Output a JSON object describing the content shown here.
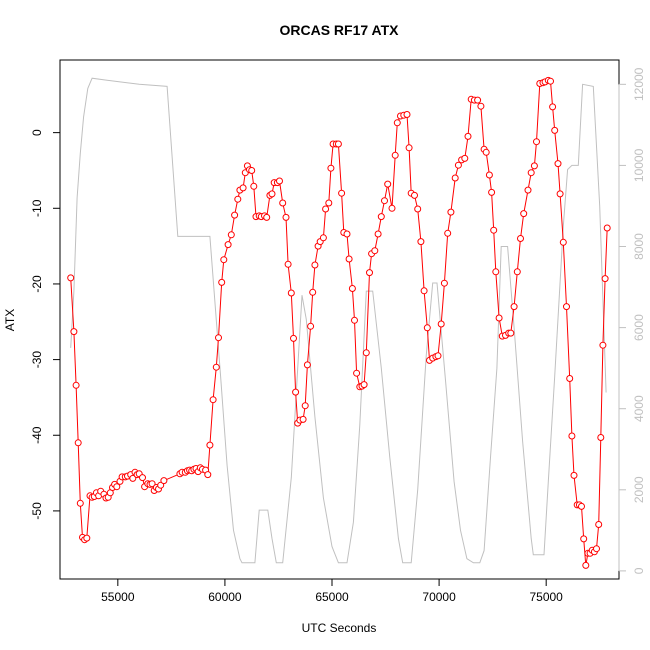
{
  "chart_data": {
    "type": "line",
    "title": "ORCAS RF17 ATX",
    "xlabel": "UTC Seconds",
    "ylabel": "ATX",
    "xlim": [
      52300,
      78400
    ],
    "ylim": [
      -59.0,
      9.6
    ],
    "y2lim": [
      -200,
      12600
    ],
    "x_ticks": [
      55000,
      60000,
      65000,
      70000,
      75000
    ],
    "y_ticks": [
      0,
      -10,
      -20,
      -30,
      -40,
      -50
    ],
    "y2_ticks": [
      0,
      2000,
      4000,
      6000,
      8000,
      10000,
      12000
    ],
    "grid": false,
    "colors": {
      "series": "#ff0000",
      "secondary": "#c0c0c0",
      "axes": "#000000"
    },
    "series": [
      {
        "y_axis": "left",
        "style": "line-with-points",
        "color": "#ff0000",
        "points": [
          [
            52800,
            -19.2
          ],
          [
            52950,
            -26.3
          ],
          [
            53050,
            -33.4
          ],
          [
            53150,
            -41.0
          ],
          [
            53250,
            -49.0
          ],
          [
            53350,
            -53.5
          ],
          [
            53450,
            -53.8
          ],
          [
            53550,
            -53.6
          ],
          [
            53700,
            -48.0
          ],
          [
            53800,
            -48.2
          ],
          [
            53900,
            -48.1
          ],
          [
            54000,
            -47.6
          ],
          [
            54100,
            -48.0
          ],
          [
            54200,
            -47.4
          ],
          [
            54350,
            -47.8
          ],
          [
            54450,
            -48.3
          ],
          [
            54550,
            -48.2
          ],
          [
            54650,
            -47.6
          ],
          [
            54750,
            -46.9
          ],
          [
            54850,
            -46.5
          ],
          [
            54950,
            -46.8
          ],
          [
            55100,
            -46.1
          ],
          [
            55200,
            -45.5
          ],
          [
            55350,
            -45.5
          ],
          [
            55450,
            -45.4
          ],
          [
            55600,
            -45.2
          ],
          [
            55700,
            -45.7
          ],
          [
            55800,
            -44.9
          ],
          [
            55900,
            -45.2
          ],
          [
            56000,
            -45.1
          ],
          [
            56150,
            -45.6
          ],
          [
            56250,
            -46.8
          ],
          [
            56400,
            -46.4
          ],
          [
            56500,
            -46.5
          ],
          [
            56600,
            -46.4
          ],
          [
            56700,
            -47.3
          ],
          [
            56800,
            -46.9
          ],
          [
            56900,
            -47.1
          ],
          [
            57000,
            -46.6
          ],
          [
            57150,
            -46.0
          ],
          [
            57900,
            -45.1
          ],
          [
            58000,
            -44.9
          ],
          [
            58150,
            -44.9
          ],
          [
            58250,
            -44.7
          ],
          [
            58350,
            -44.6
          ],
          [
            58450,
            -44.7
          ],
          [
            58550,
            -44.5
          ],
          [
            58650,
            -44.4
          ],
          [
            58750,
            -44.8
          ],
          [
            58850,
            -44.3
          ],
          [
            58950,
            -44.5
          ],
          [
            59100,
            -44.6
          ],
          [
            59200,
            -45.2
          ],
          [
            59300,
            -41.3
          ],
          [
            59450,
            -35.3
          ],
          [
            59600,
            -31.0
          ],
          [
            59700,
            -27.1
          ],
          [
            59850,
            -19.8
          ],
          [
            59950,
            -16.8
          ],
          [
            60150,
            -14.8
          ],
          [
            60300,
            -13.5
          ],
          [
            60450,
            -10.9
          ],
          [
            60600,
            -8.8
          ],
          [
            60700,
            -7.6
          ],
          [
            60850,
            -7.3
          ],
          [
            60950,
            -5.3
          ],
          [
            61050,
            -4.4
          ],
          [
            61150,
            -4.9
          ],
          [
            61250,
            -5.0
          ],
          [
            61350,
            -7.1
          ],
          [
            61450,
            -11.1
          ],
          [
            61600,
            -11.0
          ],
          [
            61700,
            -11.1
          ],
          [
            61850,
            -11.0
          ],
          [
            61950,
            -11.2
          ],
          [
            62100,
            -8.3
          ],
          [
            62200,
            -8.1
          ],
          [
            62300,
            -6.6
          ],
          [
            62450,
            -6.6
          ],
          [
            62550,
            -6.4
          ],
          [
            62700,
            -9.3
          ],
          [
            62850,
            -11.2
          ],
          [
            62950,
            -17.4
          ],
          [
            63100,
            -21.2
          ],
          [
            63200,
            -27.2
          ],
          [
            63300,
            -34.3
          ],
          [
            63400,
            -38.4
          ],
          [
            63500,
            -38.0
          ],
          [
            63650,
            -37.9
          ],
          [
            63750,
            -36.1
          ],
          [
            63850,
            -30.7
          ],
          [
            64000,
            -25.6
          ],
          [
            64100,
            -21.1
          ],
          [
            64200,
            -17.5
          ],
          [
            64350,
            -15.0
          ],
          [
            64450,
            -14.4
          ],
          [
            64600,
            -13.9
          ],
          [
            64700,
            -10.1
          ],
          [
            64850,
            -9.3
          ],
          [
            64950,
            -4.7
          ],
          [
            65050,
            -1.5
          ],
          [
            65200,
            -1.5
          ],
          [
            65300,
            -1.5
          ],
          [
            65450,
            -8.0
          ],
          [
            65550,
            -13.2
          ],
          [
            65700,
            -13.4
          ],
          [
            65800,
            -16.7
          ],
          [
            65950,
            -20.6
          ],
          [
            66050,
            -24.8
          ],
          [
            66150,
            -31.8
          ],
          [
            66300,
            -33.6
          ],
          [
            66400,
            -33.5
          ],
          [
            66500,
            -33.3
          ],
          [
            66600,
            -29.1
          ],
          [
            66750,
            -18.5
          ],
          [
            66850,
            -16.0
          ],
          [
            67000,
            -15.6
          ],
          [
            67150,
            -13.4
          ],
          [
            67300,
            -11.1
          ],
          [
            67450,
            -9.0
          ],
          [
            67600,
            -6.8
          ],
          [
            67800,
            -10.0
          ],
          [
            67950,
            -3.0
          ],
          [
            68050,
            1.3
          ],
          [
            68200,
            2.2
          ],
          [
            68350,
            2.3
          ],
          [
            68500,
            2.4
          ],
          [
            68600,
            -2.0
          ],
          [
            68700,
            -8.0
          ],
          [
            68850,
            -8.3
          ],
          [
            69000,
            -10.1
          ],
          [
            69150,
            -14.4
          ],
          [
            69300,
            -20.9
          ],
          [
            69450,
            -25.8
          ],
          [
            69550,
            -30.1
          ],
          [
            69700,
            -29.8
          ],
          [
            69850,
            -29.6
          ],
          [
            69950,
            -29.5
          ],
          [
            70100,
            -25.3
          ],
          [
            70250,
            -19.9
          ],
          [
            70400,
            -13.3
          ],
          [
            70550,
            -10.5
          ],
          [
            70750,
            -6.0
          ],
          [
            70900,
            -4.3
          ],
          [
            71050,
            -3.6
          ],
          [
            71200,
            -3.4
          ],
          [
            71350,
            -0.5
          ],
          [
            71500,
            4.4
          ],
          [
            71650,
            4.3
          ],
          [
            71800,
            4.3
          ],
          [
            71950,
            3.5
          ],
          [
            72100,
            -2.2
          ],
          [
            72200,
            -2.6
          ],
          [
            72350,
            -5.6
          ],
          [
            72450,
            -7.9
          ],
          [
            72550,
            -12.9
          ],
          [
            72650,
            -18.4
          ],
          [
            72800,
            -24.5
          ],
          [
            72950,
            -26.9
          ],
          [
            73100,
            -26.8
          ],
          [
            73250,
            -26.5
          ],
          [
            73350,
            -26.5
          ],
          [
            73500,
            -23.0
          ],
          [
            73650,
            -18.4
          ],
          [
            73800,
            -14.0
          ],
          [
            73950,
            -10.7
          ],
          [
            74150,
            -7.6
          ],
          [
            74300,
            -5.3
          ],
          [
            74450,
            -4.4
          ],
          [
            74550,
            -1.2
          ],
          [
            74700,
            6.5
          ],
          [
            74850,
            6.6
          ],
          [
            74950,
            6.7
          ],
          [
            75100,
            6.9
          ],
          [
            75200,
            6.8
          ],
          [
            75300,
            3.4
          ],
          [
            75400,
            0.3
          ],
          [
            75550,
            -4.1
          ],
          [
            75650,
            -8.1
          ],
          [
            75800,
            -14.5
          ],
          [
            75950,
            -23.0
          ],
          [
            76100,
            -32.5
          ],
          [
            76200,
            -40.1
          ],
          [
            76300,
            -45.3
          ],
          [
            76450,
            -49.2
          ],
          [
            76550,
            -49.2
          ],
          [
            76650,
            -49.4
          ],
          [
            76750,
            -53.7
          ],
          [
            76850,
            -57.2
          ],
          [
            76950,
            -55.6
          ],
          [
            77050,
            -55.6
          ],
          [
            77150,
            -55.2
          ],
          [
            77250,
            -55.4
          ],
          [
            77350,
            -55.0
          ],
          [
            77450,
            -51.8
          ],
          [
            77550,
            -40.3
          ],
          [
            77650,
            -28.1
          ],
          [
            77750,
            -19.3
          ],
          [
            77850,
            -12.6
          ]
        ]
      },
      {
        "y_axis": "right",
        "style": "line",
        "color": "#c0c0c0",
        "points": [
          [
            52800,
            5500
          ],
          [
            52950,
            6900
          ],
          [
            53100,
            9200
          ],
          [
            53250,
            10300
          ],
          [
            53400,
            11200
          ],
          [
            53600,
            11900
          ],
          [
            53800,
            12150
          ],
          [
            54500,
            12100
          ],
          [
            56000,
            12000
          ],
          [
            57300,
            11950
          ],
          [
            57800,
            8250
          ],
          [
            59300,
            8250
          ],
          [
            59800,
            4800
          ],
          [
            60100,
            2600
          ],
          [
            60400,
            1000
          ],
          [
            60700,
            300
          ],
          [
            60800,
            200
          ],
          [
            61400,
            200
          ],
          [
            61600,
            1500
          ],
          [
            62000,
            1500
          ],
          [
            62200,
            800
          ],
          [
            62400,
            200
          ],
          [
            62700,
            200
          ],
          [
            63100,
            2300
          ],
          [
            63600,
            6800
          ],
          [
            63800,
            6200
          ],
          [
            64200,
            3800
          ],
          [
            64600,
            1800
          ],
          [
            65000,
            600
          ],
          [
            65300,
            200
          ],
          [
            65700,
            200
          ],
          [
            66000,
            1200
          ],
          [
            66300,
            3600
          ],
          [
            66600,
            6900
          ],
          [
            66900,
            6900
          ],
          [
            67300,
            5000
          ],
          [
            67700,
            2800
          ],
          [
            68100,
            800
          ],
          [
            68300,
            200
          ],
          [
            68700,
            200
          ],
          [
            69000,
            2000
          ],
          [
            69400,
            5300
          ],
          [
            69700,
            7100
          ],
          [
            69900,
            7100
          ],
          [
            70300,
            4700
          ],
          [
            70700,
            2200
          ],
          [
            71000,
            1000
          ],
          [
            71300,
            300
          ],
          [
            71600,
            200
          ],
          [
            71900,
            200
          ],
          [
            72100,
            500
          ],
          [
            72400,
            2800
          ],
          [
            72700,
            5000
          ],
          [
            72900,
            8000
          ],
          [
            73200,
            8000
          ],
          [
            73500,
            6000
          ],
          [
            73900,
            3200
          ],
          [
            74300,
            800
          ],
          [
            74400,
            400
          ],
          [
            74900,
            400
          ],
          [
            75100,
            2200
          ],
          [
            75400,
            4800
          ],
          [
            75800,
            8500
          ],
          [
            76000,
            9900
          ],
          [
            76200,
            10000
          ],
          [
            76500,
            10000
          ],
          [
            76700,
            12000
          ],
          [
            77200,
            11950
          ],
          [
            77500,
            9000
          ],
          [
            77800,
            4400
          ]
        ]
      }
    ]
  }
}
